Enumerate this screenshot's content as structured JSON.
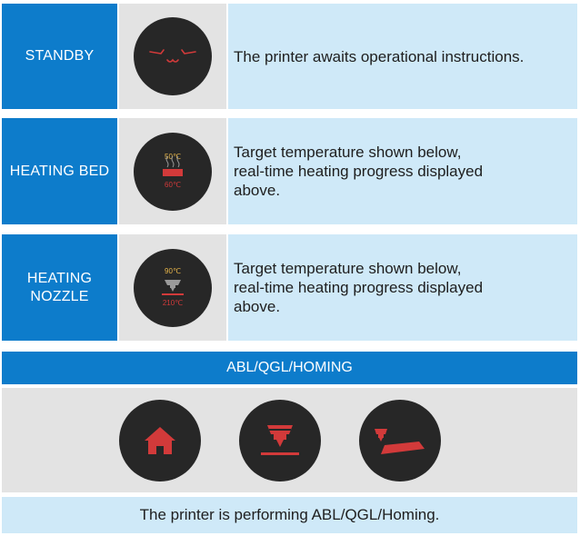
{
  "rows": [
    {
      "label": "STANDBY",
      "description": "The printer awaits operational instructions.",
      "icon": "sleepy-face-icon"
    },
    {
      "label": "HEATING BED",
      "description": "Target temperature shown below,\nreal-time heating progress displayed\nabove.",
      "icon": "heated-bed-icon",
      "temp_current": "50℃",
      "temp_target": "60℃"
    },
    {
      "label": "HEATING\nNOZZLE",
      "description": "Target temperature shown below,\nreal-time heating progress displayed\nabove.",
      "icon": "nozzle-icon",
      "temp_current": "90℃",
      "temp_target": "210℃"
    }
  ],
  "banner": "ABL/QGL/HOMING",
  "status_icons": [
    "home-icon",
    "nozzle-icon",
    "nozzle-bed-icon"
  ],
  "footer": "The printer is performing ABL/QGL/Homing.",
  "colors": {
    "blue": "#0d7ccb",
    "light_blue": "#cfe9f8",
    "gray": "#e3e3e3",
    "dark": "#272727",
    "red": "#d23a3a",
    "amber": "#e8b64a"
  }
}
